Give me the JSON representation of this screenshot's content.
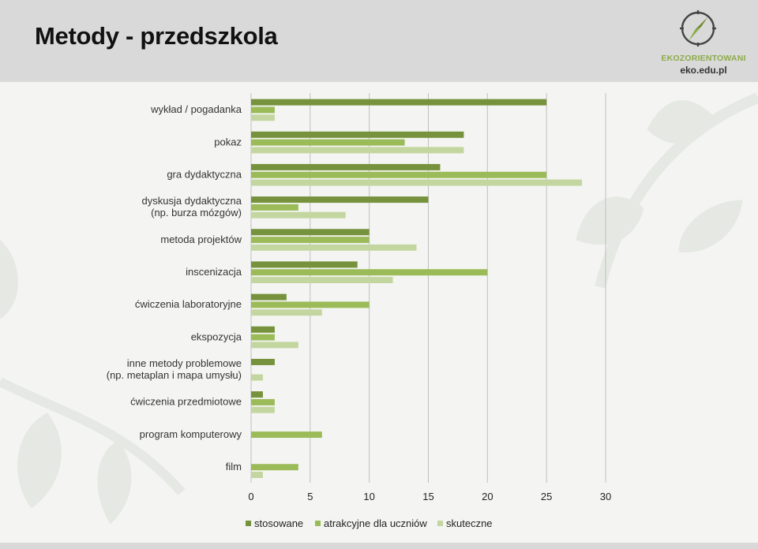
{
  "header": {
    "title": "Metody - przedszkola",
    "logo_name": "EKOZORIENTOWANI",
    "logo_url": "eko.edu.pl"
  },
  "colors": {
    "stosowane": "#76923c",
    "atrakcyjne": "#9bbb59",
    "skuteczne": "#c4d6a0"
  },
  "chart_data": {
    "type": "bar",
    "orientation": "horizontal",
    "categories": [
      [
        "wykład / pogadanka"
      ],
      [
        "pokaz"
      ],
      [
        "gra dydaktyczna"
      ],
      [
        "dyskusja dydaktyczna",
        "(np. burza mózgów)"
      ],
      [
        "metoda projektów"
      ],
      [
        "inscenizacja"
      ],
      [
        "ćwiczenia laboratoryjne"
      ],
      [
        "ekspozycja"
      ],
      [
        "inne metody problemowe",
        "(np. metaplan i mapa umysłu)"
      ],
      [
        "ćwiczenia przedmiotowe"
      ],
      [
        "program komputerowy"
      ],
      [
        "film"
      ]
    ],
    "series": [
      {
        "name": "stosowane",
        "values": [
          25,
          18,
          16,
          15,
          10,
          9,
          3,
          2,
          2,
          1,
          0,
          0
        ]
      },
      {
        "name": "atrakcyjne dla uczniów",
        "values": [
          2,
          13,
          25,
          4,
          10,
          20,
          10,
          2,
          0,
          2,
          6,
          4
        ]
      },
      {
        "name": "skuteczne",
        "values": [
          2,
          18,
          28,
          8,
          14,
          12,
          6,
          4,
          1,
          2,
          0,
          1
        ]
      }
    ],
    "xlim": [
      0,
      30
    ],
    "xticks": [
      0,
      5,
      10,
      15,
      20,
      25,
      30
    ],
    "grid": true,
    "legend_position": "bottom"
  }
}
